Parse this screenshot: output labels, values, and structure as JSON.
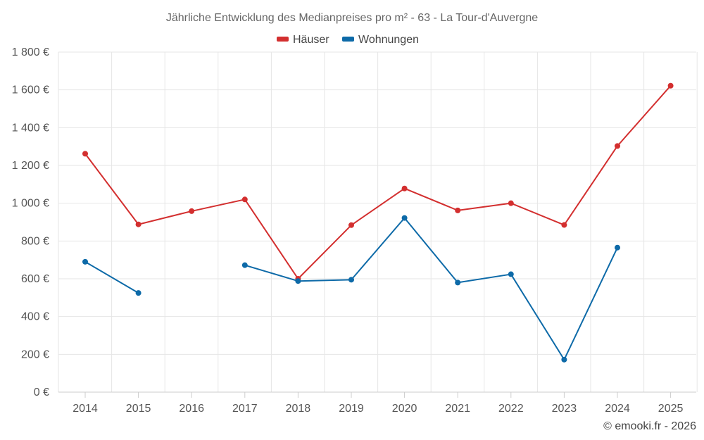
{
  "chart_data": {
    "type": "line",
    "title": "Jährliche Entwicklung des Medianpreises pro m² - 63 - La Tour-d'Auvergne",
    "xlabel": "",
    "ylabel": "",
    "categories": [
      "2014",
      "2015",
      "2016",
      "2017",
      "2018",
      "2019",
      "2020",
      "2021",
      "2022",
      "2023",
      "2024",
      "2025"
    ],
    "ylim": [
      0,
      1800
    ],
    "yticks": [
      0,
      200,
      400,
      600,
      800,
      1000,
      1200,
      1400,
      1600,
      1800
    ],
    "ytick_labels": [
      "0 €",
      "200 €",
      "400 €",
      "600 €",
      "800 €",
      "1 000 €",
      "1 200 €",
      "1 400 €",
      "1 600 €",
      "1 800 €"
    ],
    "grid": true,
    "legend_position": "top-center",
    "series": [
      {
        "name": "Häuser",
        "color": "#d32f2f",
        "values": [
          1262,
          888,
          958,
          1020,
          600,
          884,
          1078,
          962,
          1000,
          885,
          1303,
          1622
        ]
      },
      {
        "name": "Wohnungen",
        "color": "#0d6aa8",
        "values": [
          690,
          525,
          null,
          672,
          588,
          595,
          922,
          580,
          624,
          172,
          765,
          null
        ]
      }
    ]
  },
  "credit": "© emooki.fr - 2026"
}
